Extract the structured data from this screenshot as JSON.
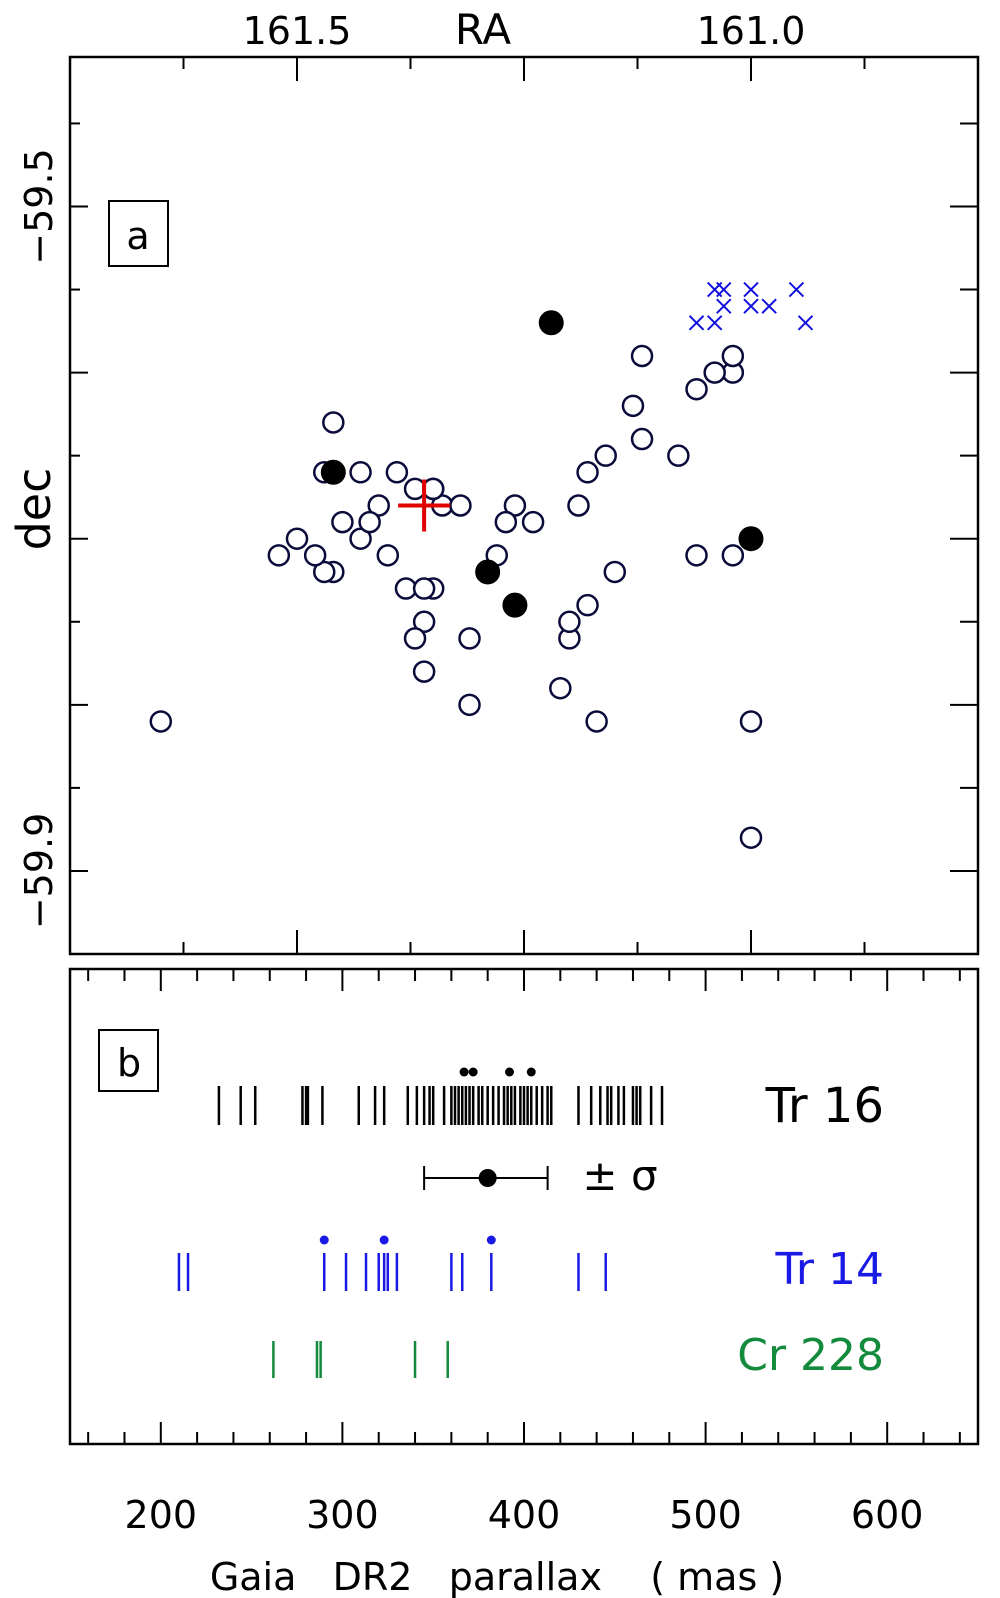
{
  "chart_data": [
    {
      "panel": "a",
      "type": "scatter",
      "label": "a",
      "xlabel": "RA",
      "ylabel": "dec",
      "x_axis": "top",
      "x_reversed": true,
      "xlim": [
        161.75,
        160.75
      ],
      "ylim": [
        -59.95,
        -59.41
      ],
      "xticks": [
        161.5,
        161.0
      ],
      "xtick_labels": [
        "161.5",
        "161.0"
      ],
      "yticks": [
        -59.5,
        -59.9
      ],
      "ytick_labels": [
        "−59.5",
        "−59.9"
      ],
      "series": [
        {
          "marker": "open-circle",
          "color": "#0b0b3b",
          "points": [
            [
              161.12,
              -59.59
            ],
            [
              161.37,
              -59.67
            ],
            [
              161.29,
              -59.72
            ],
            [
              161.26,
              -59.74
            ],
            [
              161.35,
              -59.73
            ],
            [
              161.31,
              -59.76
            ],
            [
              161.36,
              -59.75
            ],
            [
              161.36,
              -59.78
            ],
            [
              161.31,
              -59.8
            ],
            [
              161.47,
              -59.66
            ],
            [
              161.39,
              -59.66
            ],
            [
              161.38,
              -59.73
            ],
            [
              161.46,
              -59.63
            ],
            [
              161.5,
              -59.7
            ],
            [
              161.43,
              -59.66
            ],
            [
              161.02,
              -59.6
            ],
            [
              161.04,
              -59.6
            ],
            [
              161.06,
              -59.61
            ],
            [
              161.08,
              -59.65
            ],
            [
              161.02,
              -59.59
            ],
            [
              161.13,
              -59.62
            ],
            [
              161.18,
              -59.66
            ],
            [
              161.12,
              -59.64
            ],
            [
              161.16,
              -59.65
            ],
            [
              161.19,
              -59.68
            ],
            [
              161.34,
              -59.68
            ],
            [
              161.26,
              -59.68
            ],
            [
              161.27,
              -59.69
            ],
            [
              161.32,
              -59.68
            ],
            [
              161.24,
              -59.69
            ],
            [
              161.35,
              -59.67
            ],
            [
              161.4,
              -59.71
            ],
            [
              161.43,
              -59.7
            ],
            [
              161.46,
              -59.72
            ],
            [
              161.47,
              -59.72
            ],
            [
              161.52,
              -59.71
            ],
            [
              161.48,
              -59.71
            ],
            [
              161.41,
              -59.68
            ],
            [
              161.42,
              -59.69
            ],
            [
              161.36,
              -59.73
            ],
            [
              161.21,
              -59.79
            ],
            [
              161.2,
              -59.76
            ],
            [
              161.65,
              -59.81
            ],
            [
              161.17,
              -59.81
            ],
            [
              161.0,
              -59.81
            ],
            [
              161.15,
              -59.72
            ],
            [
              161.06,
              -59.71
            ],
            [
              161.02,
              -59.71
            ],
            [
              161.37,
              -59.76
            ],
            [
              161.45,
              -59.69
            ],
            [
              161.35,
              -59.67
            ],
            [
              161.0,
              -59.88
            ],
            [
              161.28,
              -59.71
            ],
            [
              161.18,
              -59.74
            ],
            [
              161.2,
              -59.75
            ]
          ]
        },
        {
          "marker": "filled-circle",
          "color": "#000000",
          "points": [
            [
              161.22,
              -59.57
            ],
            [
              161.26,
              -59.74
            ],
            [
              161.29,
              -59.72
            ],
            [
              161.46,
              -59.66
            ],
            [
              161.0,
              -59.7
            ]
          ]
        },
        {
          "marker": "x",
          "color": "#1010e0",
          "points": [
            [
              161.04,
              -59.55
            ],
            [
              161.04,
              -59.57
            ],
            [
              161.03,
              -59.55
            ],
            [
              161.03,
              -59.56
            ],
            [
              161.0,
              -59.55
            ],
            [
              161.0,
              -59.56
            ],
            [
              160.98,
              -59.56
            ],
            [
              160.95,
              -59.55
            ],
            [
              160.94,
              -59.57
            ],
            [
              161.06,
              -59.57
            ]
          ]
        },
        {
          "marker": "plus",
          "color": "#e00000",
          "points": [
            [
              161.36,
              -59.68
            ]
          ]
        }
      ]
    },
    {
      "panel": "b",
      "type": "scatter",
      "label": "b",
      "xlabel": "Gaia   DR2   parallax    ( mas )",
      "xlim": [
        150,
        650
      ],
      "xticks": [
        200,
        300,
        400,
        500,
        600
      ],
      "xtick_labels": [
        "200",
        "300",
        "400",
        "500",
        "600"
      ],
      "series": [
        {
          "name": "Tr 16",
          "color": "#000000",
          "values": [
            232,
            244,
            252,
            278,
            280,
            281,
            289,
            309,
            318,
            323,
            336,
            341,
            345,
            348,
            350,
            356,
            360,
            362,
            364,
            366,
            368,
            370,
            372,
            375,
            377,
            380,
            383,
            386,
            389,
            391,
            393,
            395,
            398,
            400,
            402,
            404,
            407,
            410,
            413,
            415,
            430,
            437,
            442,
            446,
            448,
            452,
            455,
            460,
            462,
            464,
            470,
            476
          ],
          "dots": [
            367,
            372,
            392,
            404
          ]
        },
        {
          "name": "Tr 14",
          "color": "#1a1ae6",
          "values": [
            210,
            215,
            290,
            302,
            313,
            320,
            323,
            325,
            330,
            360,
            366,
            382,
            430,
            445
          ],
          "dots": [
            290,
            323,
            382
          ]
        },
        {
          "name": "Cr 228",
          "color": "#138a3c",
          "values": [
            262,
            286,
            288,
            340,
            358
          ]
        }
      ],
      "mean": {
        "value": 380,
        "sigma_low": 345,
        "sigma_high": 413,
        "label": "± σ",
        "color": "#000000"
      }
    }
  ]
}
